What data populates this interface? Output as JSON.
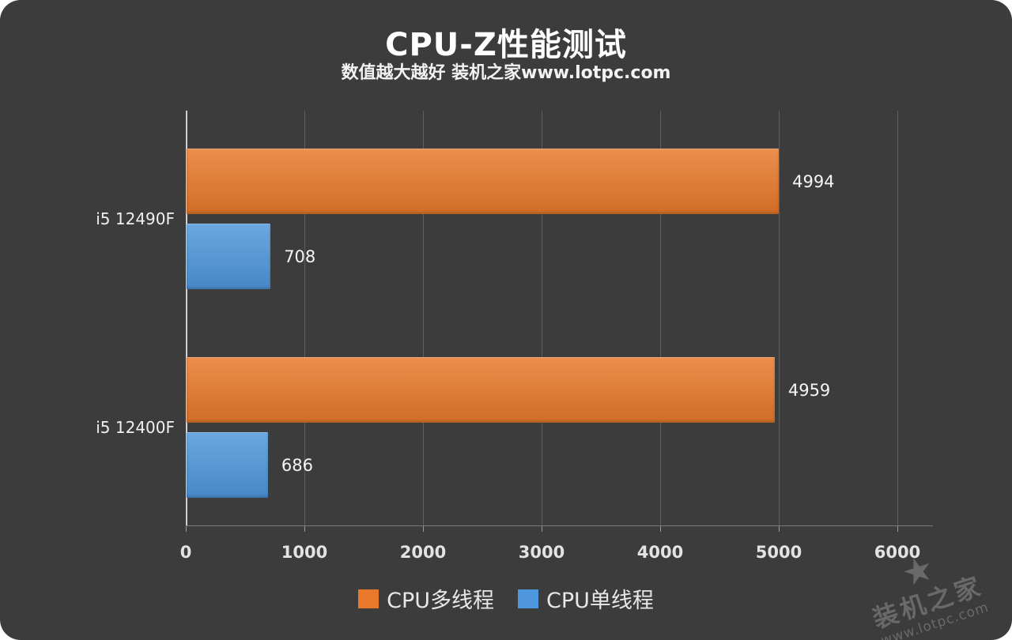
{
  "title": "CPU-Z性能测试",
  "subtitle": "数值越大越好 装机之家www.lotpc.com",
  "watermark": {
    "star": "★",
    "name": "装机之家",
    "url": "www.lotpc.com"
  },
  "colors": {
    "background": "#3c3c3c",
    "multi_thread": "#e8792b",
    "single_thread": "#4f97dc",
    "gridline": "#5f5f5f",
    "axis": "#cfcfcf"
  },
  "chart_data": {
    "type": "bar",
    "orientation": "horizontal",
    "title": "CPU-Z性能测试",
    "subtitle": "数值越大越好 装机之家www.lotpc.com",
    "categories": [
      "i5 12490F",
      "i5 12400F"
    ],
    "series": [
      {
        "name": "CPU多线程",
        "color": "#e8792b",
        "values": [
          4994,
          4959
        ]
      },
      {
        "name": "CPU单线程",
        "color": "#4f97dc",
        "values": [
          708,
          686
        ]
      }
    ],
    "xlim": [
      0,
      6300
    ],
    "xticks": [
      0,
      1000,
      2000,
      3000,
      4000,
      5000,
      6000
    ],
    "grid": true,
    "legend_position": "bottom"
  }
}
